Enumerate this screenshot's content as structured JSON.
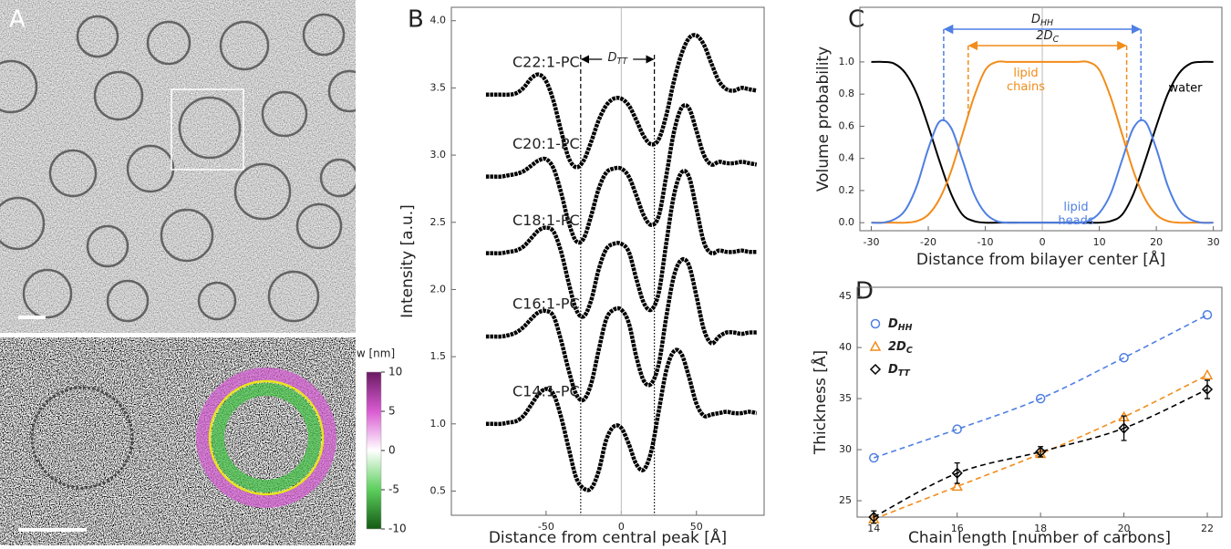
{
  "micrograph": {
    "panel": "A",
    "colorbar": {
      "label": "w [nm]",
      "lim": [
        -10,
        10
      ],
      "ticks": [
        10,
        5,
        0,
        -5,
        -10
      ]
    }
  },
  "chart_data": [
    {
      "panel": "B",
      "type": "line",
      "xlabel": "Distance from central peak [Å]",
      "ylabel": "Intensity [a.u.]",
      "x": [
        -90,
        -85,
        -80,
        -75,
        -70,
        -65,
        -60,
        -55,
        -50,
        -45,
        -40,
        -35,
        -30,
        -25,
        -20,
        -15,
        -10,
        -5,
        0,
        5,
        10,
        15,
        20,
        25,
        30,
        35,
        40,
        45,
        50,
        55,
        60,
        65,
        70,
        75,
        80,
        85,
        90
      ],
      "series": [
        {
          "name": "C22:1-PC",
          "color": "#000000",
          "values": [
            3.45,
            3.45,
            3.45,
            3.45,
            3.46,
            3.5,
            3.57,
            3.6,
            3.55,
            3.4,
            3.18,
            2.98,
            2.91,
            2.96,
            3.1,
            3.26,
            3.37,
            3.42,
            3.42,
            3.37,
            3.26,
            3.14,
            3.08,
            3.12,
            3.3,
            3.55,
            3.75,
            3.87,
            3.89,
            3.82,
            3.68,
            3.55,
            3.49,
            3.48,
            3.5,
            3.49,
            3.48
          ]
        },
        {
          "name": "C20:1-PC",
          "color": "#000000",
          "values": [
            2.84,
            2.84,
            2.84,
            2.85,
            2.86,
            2.88,
            2.92,
            2.96,
            2.97,
            2.9,
            2.72,
            2.5,
            2.36,
            2.38,
            2.55,
            2.75,
            2.87,
            2.9,
            2.9,
            2.84,
            2.7,
            2.55,
            2.48,
            2.55,
            2.85,
            3.17,
            3.35,
            3.35,
            3.18,
            3.0,
            2.93,
            2.95,
            2.94,
            2.94,
            2.95,
            2.94,
            2.93
          ]
        },
        {
          "name": "C18:1-PC",
          "color": "#000000",
          "values": [
            2.27,
            2.27,
            2.27,
            2.28,
            2.29,
            2.32,
            2.38,
            2.44,
            2.46,
            2.43,
            2.28,
            2.05,
            1.85,
            1.8,
            1.92,
            2.15,
            2.3,
            2.34,
            2.34,
            2.28,
            2.08,
            1.9,
            1.85,
            1.98,
            2.35,
            2.7,
            2.87,
            2.84,
            2.6,
            2.35,
            2.27,
            2.29,
            2.28,
            2.28,
            2.29,
            2.28,
            2.28
          ]
        },
        {
          "name": "C16:1-PC",
          "color": "#000000",
          "values": [
            1.65,
            1.65,
            1.65,
            1.66,
            1.68,
            1.72,
            1.78,
            1.83,
            1.84,
            1.8,
            1.62,
            1.4,
            1.22,
            1.18,
            1.3,
            1.55,
            1.78,
            1.85,
            1.85,
            1.75,
            1.5,
            1.32,
            1.3,
            1.45,
            1.8,
            2.1,
            2.22,
            2.18,
            1.95,
            1.7,
            1.6,
            1.65,
            1.68,
            1.68,
            1.67,
            1.68,
            1.68
          ]
        },
        {
          "name": "C14:1-PC",
          "color": "#000000",
          "values": [
            1.0,
            1.0,
            1.0,
            1.01,
            1.02,
            1.06,
            1.14,
            1.22,
            1.26,
            1.22,
            1.05,
            0.82,
            0.6,
            0.52,
            0.52,
            0.65,
            0.88,
            0.98,
            0.97,
            0.85,
            0.7,
            0.66,
            0.8,
            1.1,
            1.4,
            1.54,
            1.52,
            1.35,
            1.15,
            1.06,
            1.07,
            1.08,
            1.09,
            1.08,
            1.08,
            1.09,
            1.08
          ]
        }
      ],
      "xlim": [
        -113,
        95
      ],
      "xticks": [
        -50,
        0,
        50
      ],
      "ylim": [
        0.32,
        4.1
      ],
      "yticks": [
        0.5,
        {
          "value": 1,
          "label": "1.0"
        },
        1.5,
        {
          "value": 2,
          "label": "2.0"
        },
        2.5,
        {
          "value": 3,
          "label": "3.0"
        },
        3.5,
        {
          "value": 4,
          "label": "4.0"
        }
      ],
      "vline": 0,
      "reference_lines": [
        -27,
        22
      ],
      "annotation": "DTT"
    },
    {
      "panel": "C",
      "type": "line",
      "xlabel": "Distance from bilayer center [Å]",
      "ylabel": "Volume probability",
      "x": [
        -30,
        -28,
        -26,
        -24,
        -22,
        -20,
        -18,
        -16,
        -14,
        -12,
        -10,
        -8,
        -6,
        -4,
        -2,
        0,
        2,
        4,
        6,
        8,
        10,
        12,
        14,
        16,
        18,
        20,
        22,
        24,
        26,
        28,
        30
      ],
      "series": [
        {
          "name": "water",
          "color": "#000000",
          "values": [
            1,
            1,
            0.99,
            0.93,
            0.8,
            0.6,
            0.38,
            0.18,
            0.05,
            0.01,
            0,
            0,
            0,
            0,
            0,
            0,
            0,
            0,
            0,
            0,
            0,
            0.01,
            0.05,
            0.18,
            0.38,
            0.6,
            0.8,
            0.93,
            0.99,
            1,
            1
          ]
        },
        {
          "name": "lipid chains",
          "color": "#f28c1a",
          "values": [
            0,
            0,
            0,
            0,
            0.01,
            0.05,
            0.15,
            0.32,
            0.55,
            0.78,
            0.95,
            1,
            1,
            1,
            1,
            1,
            1,
            1,
            1,
            1,
            0.95,
            0.78,
            0.55,
            0.32,
            0.15,
            0.05,
            0.01,
            0,
            0,
            0,
            0
          ]
        },
        {
          "name": "lipid heads",
          "color": "#4f7fe3",
          "values": [
            0,
            0,
            0.02,
            0.08,
            0.23,
            0.46,
            0.63,
            0.59,
            0.39,
            0.18,
            0.06,
            0.01,
            0,
            0,
            0,
            0,
            0,
            0,
            0,
            0.01,
            0.06,
            0.18,
            0.39,
            0.59,
            0.63,
            0.46,
            0.23,
            0.08,
            0.02,
            0,
            0
          ]
        }
      ],
      "xlim": [
        -32,
        31.5
      ],
      "xticks": [
        -30,
        -20,
        -10,
        0,
        10,
        20,
        30
      ],
      "ylim": [
        -0.05,
        1.34
      ],
      "yticks": [
        {
          "value": 0,
          "label": "0.0"
        },
        0.2,
        0.4,
        0.6,
        0.8,
        {
          "value": 1,
          "label": "1.0"
        }
      ],
      "vline": 0,
      "spans": [
        {
          "label": "DHH",
          "series": 2,
          "range": [
            -17.3,
            17.3
          ]
        },
        {
          "label": "2DC",
          "series": 1,
          "range": [
            -13,
            14.8
          ]
        }
      ]
    },
    {
      "panel": "D",
      "type": "scatter",
      "xlabel": "Chain length [number of carbons]",
      "ylabel": "Thickness [Å]",
      "x": [
        14,
        16,
        18,
        20,
        22
      ],
      "series": [
        {
          "name": "DHH",
          "color": "#4f7fe3",
          "marker": "circle",
          "values": [
            29.2,
            32.0,
            35.0,
            39.0,
            43.2
          ]
        },
        {
          "name": "2DC",
          "color": "#f28c1a",
          "marker": "triangle",
          "values": [
            23.2,
            26.4,
            29.6,
            33.2,
            37.3
          ]
        },
        {
          "name": "DTT",
          "color": "#000000",
          "marker": "diamond",
          "values": [
            23.4,
            27.7,
            29.8,
            32.1,
            35.9
          ],
          "errors": [
            0.6,
            1.0,
            0.5,
            1.2,
            0.9
          ]
        }
      ],
      "xlim": [
        13.6,
        22.35
      ],
      "xticks": [
        14,
        16,
        18,
        20,
        22
      ],
      "ylim": [
        23.4,
        45.9
      ],
      "yticks": [
        25,
        30,
        35,
        40,
        45
      ],
      "fit_lines": true,
      "legend": "upper-left"
    }
  ]
}
